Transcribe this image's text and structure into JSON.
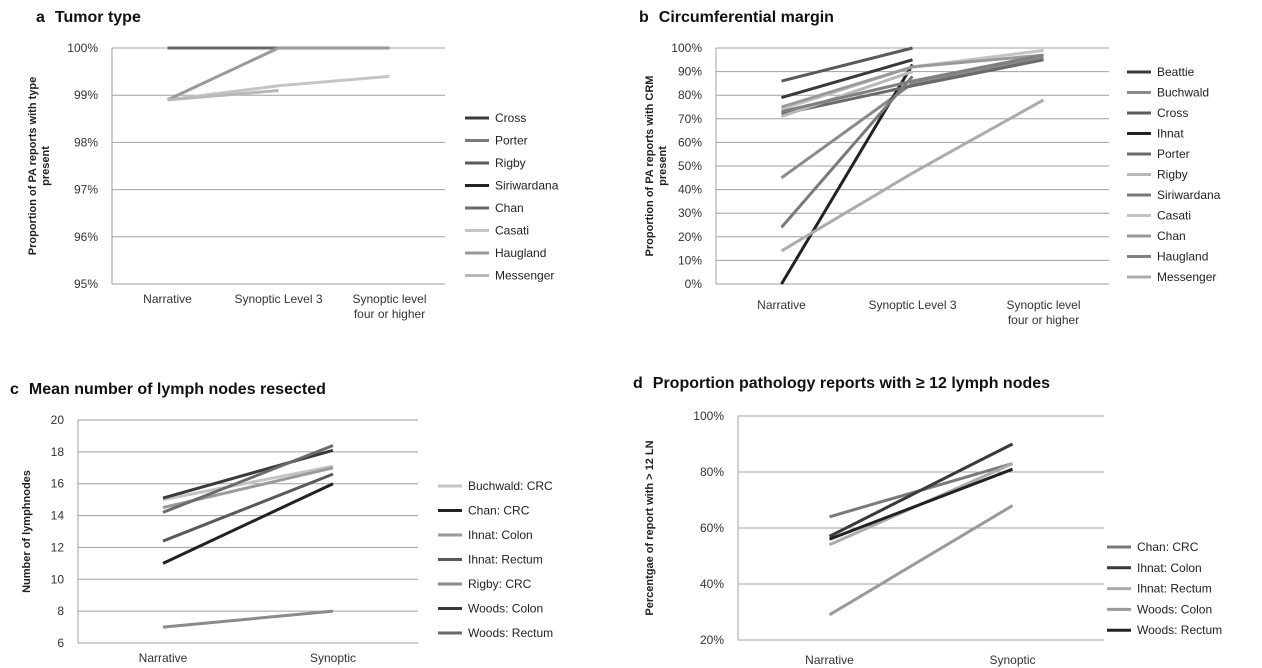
{
  "colors": {
    "s1": "#3a3a3a",
    "s2": "#7a7a7a",
    "s3": "#5a5a5a",
    "s4": "#222222",
    "s5": "#6a6a6a",
    "s6": "#b8b8b8",
    "s7": "#8a8a8a",
    "s8": "#c4c4c4",
    "s9": "#9a9a9a",
    "s10": "#808080",
    "s11": "#acacac"
  },
  "chart_data": [
    {
      "id": "a",
      "type": "line",
      "panel_label": "a",
      "title": "Tumor type",
      "xlabel": "",
      "ylabel": "Proportion of PA reports with type present",
      "categories": [
        "Narrative",
        "Synoptic Level 3",
        "Synoptic level four or higher"
      ],
      "ylim": [
        95,
        100
      ],
      "yticks": [
        "95%",
        "96%",
        "97%",
        "98%",
        "99%",
        "100%"
      ],
      "grid": true,
      "legend_position": "right",
      "series": [
        {
          "name": "Cross",
          "values": [
            100,
            100,
            null
          ],
          "color": "#3a3a3a"
        },
        {
          "name": "Porter",
          "values": [
            100,
            100,
            100
          ],
          "color": "#7a7a7a"
        },
        {
          "name": "Rigby",
          "values": [
            100,
            100,
            100
          ],
          "color": "#5a5a5a"
        },
        {
          "name": "Siriwardana",
          "values": [
            100,
            100,
            100
          ],
          "color": "#222222"
        },
        {
          "name": "Chan",
          "values": [
            100,
            100,
            null
          ],
          "color": "#6a6a6a"
        },
        {
          "name": "Casati",
          "values": [
            98.9,
            99.2,
            99.4
          ],
          "color": "#c4c4c4"
        },
        {
          "name": "Haugland",
          "values": [
            98.9,
            100,
            100
          ],
          "color": "#9a9a9a"
        },
        {
          "name": "Messenger",
          "values": [
            98.9,
            99.1,
            null
          ],
          "color": "#b8b8b8"
        }
      ]
    },
    {
      "id": "b",
      "type": "line",
      "panel_label": "b",
      "title": "Circumferential margin",
      "xlabel": "",
      "ylabel": "Proportion of PA reports with CRM present",
      "categories": [
        "Narrative",
        "Synoptic Level 3",
        "Synoptic level four or higher"
      ],
      "ylim": [
        0,
        100
      ],
      "yticks": [
        "0%",
        "10%",
        "20%",
        "30%",
        "40%",
        "50%",
        "60%",
        "70%",
        "80%",
        "90%",
        "100%"
      ],
      "grid": true,
      "legend_position": "right",
      "series": [
        {
          "name": "Beattie",
          "values": [
            79,
            95,
            null
          ],
          "color": "#3a3a3a"
        },
        {
          "name": "Buchwald",
          "values": [
            45,
            85,
            96
          ],
          "color": "#8a8a8a"
        },
        {
          "name": "Cross",
          "values": [
            86,
            100,
            null
          ],
          "color": "#5a5a5a"
        },
        {
          "name": "Ihnat",
          "values": [
            0,
            93,
            null
          ],
          "color": "#222222"
        },
        {
          "name": "Porter",
          "values": [
            72,
            84,
            95
          ],
          "color": "#6a6a6a"
        },
        {
          "name": "Rigby",
          "values": [
            71,
            90,
            null
          ],
          "color": "#b8b8b8"
        },
        {
          "name": "Siriwardana",
          "values": [
            24,
            88,
            null
          ],
          "color": "#7a7a7a"
        },
        {
          "name": "Casati",
          "values": [
            74,
            92,
            99
          ],
          "color": "#c4c4c4"
        },
        {
          "name": "Chan",
          "values": [
            75,
            92,
            97
          ],
          "color": "#9a9a9a"
        },
        {
          "name": "Haugland",
          "values": [
            73,
            86,
            97
          ],
          "color": "#808080"
        },
        {
          "name": "Messenger",
          "values": [
            14,
            47,
            78
          ],
          "color": "#acacac"
        }
      ]
    },
    {
      "id": "c",
      "type": "line",
      "panel_label": "c",
      "title": "Mean number of lymph nodes resected",
      "xlabel": "",
      "ylabel": "Number of lymphnodes",
      "categories": [
        "Narrative",
        "Synoptic"
      ],
      "ylim": [
        6,
        20
      ],
      "yticks": [
        "6",
        "8",
        "10",
        "12",
        "14",
        "16",
        "18",
        "20"
      ],
      "grid": true,
      "legend_position": "right",
      "series": [
        {
          "name": "Buchwald: CRC",
          "values": [
            15.0,
            17.1
          ],
          "color": "#c4c4c4"
        },
        {
          "name": "Chan: CRC",
          "values": [
            11.0,
            16.0
          ],
          "color": "#222222"
        },
        {
          "name": "Ihnat: Colon",
          "values": [
            14.5,
            17.0
          ],
          "color": "#9a9a9a"
        },
        {
          "name": "Ihnat: Rectum",
          "values": [
            12.4,
            16.6
          ],
          "color": "#5a5a5a"
        },
        {
          "name": "Rigby: CRC",
          "values": [
            7.0,
            8.0
          ],
          "color": "#8a8a8a"
        },
        {
          "name": "Woods: Colon",
          "values": [
            15.1,
            18.1
          ],
          "color": "#3a3a3a"
        },
        {
          "name": "Woods: Rectum",
          "values": [
            14.2,
            18.4
          ],
          "color": "#6a6a6a"
        }
      ]
    },
    {
      "id": "d",
      "type": "line",
      "panel_label": "d",
      "title": "Proportion pathology reports with ≥ 12 lymph nodes",
      "xlabel": "",
      "ylabel": "Percentgae of report with > 12 LN",
      "categories": [
        "Narrative",
        "Synoptic"
      ],
      "ylim": [
        20,
        100
      ],
      "yticks": [
        "20%",
        "40%",
        "60%",
        "80%",
        "100%"
      ],
      "grid": true,
      "legend_position": "right",
      "series": [
        {
          "name": "Chan: CRC",
          "values": [
            64,
            83
          ],
          "color": "#7a7a7a"
        },
        {
          "name": "Ihnat: Colon",
          "values": [
            57,
            90
          ],
          "color": "#3a3a3a"
        },
        {
          "name": "Ihnat: Rectum",
          "values": [
            54,
            83
          ],
          "color": "#acacac"
        },
        {
          "name": "Woods: Colon",
          "values": [
            29,
            68
          ],
          "color": "#9a9a9a"
        },
        {
          "name": "Woods: Rectum",
          "values": [
            56,
            81
          ],
          "color": "#222222"
        }
      ]
    }
  ]
}
